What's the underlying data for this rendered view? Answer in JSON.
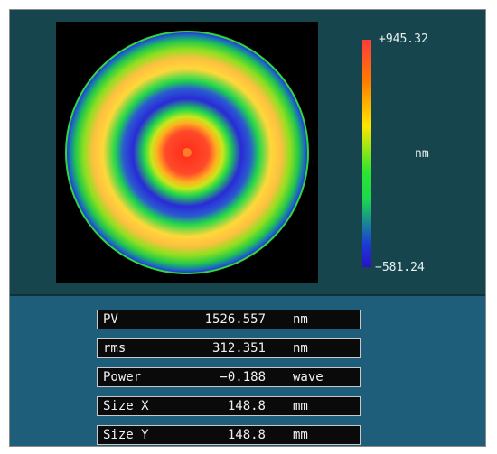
{
  "colorbar": {
    "max_label": "+945.32",
    "min_label": "−581.24",
    "unit": "nm",
    "max_value": 945.32,
    "min_value": -581.24
  },
  "surface_map": {
    "colors": {
      "red": "#ff3b2a",
      "orange": "#ff8a1a",
      "yellow": "#ffd83a",
      "green": "#22e02a",
      "blue": "#2a2ad8",
      "black": "#000000"
    }
  },
  "stats": [
    {
      "label": "PV",
      "value": "1526.557",
      "unit": "nm"
    },
    {
      "label": "rms",
      "value": "312.351",
      "unit": "nm"
    },
    {
      "label": "Power",
      "value": "−0.188",
      "unit": "wave"
    },
    {
      "label": "Size X",
      "value": "148.8",
      "unit": "mm"
    },
    {
      "label": "Size Y",
      "value": "148.8",
      "unit": "mm"
    }
  ]
}
